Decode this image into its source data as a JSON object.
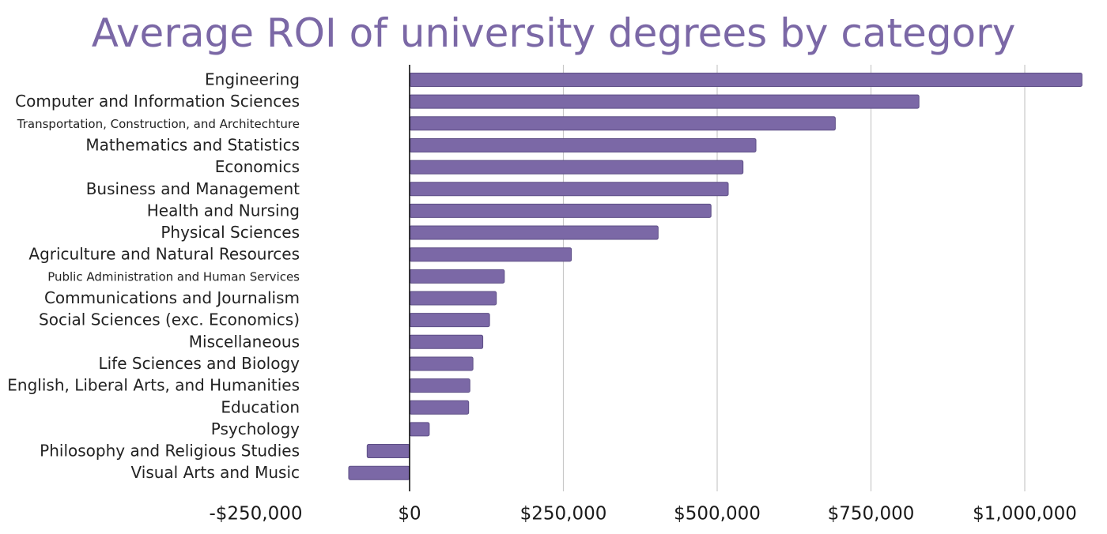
{
  "chart_data": {
    "type": "bar",
    "orientation": "horizontal",
    "title": "Average ROI of university degrees by category",
    "xlabel": "",
    "ylabel": "",
    "categories": [
      "Engineering",
      "Computer and Information Sciences",
      "Transportation, Construction, and Architechture",
      "Mathematics and Statistics",
      "Economics",
      "Business and Management",
      "Health and Nursing",
      "Physical Sciences",
      "Agriculture and Natural Resources",
      "Public Administration and Human Services",
      "Communications and Journalism",
      "Social Sciences (exc. Economics)",
      "Miscellaneous",
      "Life Sciences and Biology",
      "English, Liberal Arts, and Humanities",
      "Education",
      "Psychology",
      "Philosophy and Religious Studies",
      "Visual Arts and Music"
    ],
    "values": [
      1093000,
      828000,
      692000,
      563000,
      542000,
      518000,
      490000,
      404000,
      263000,
      154000,
      141000,
      130000,
      119000,
      103000,
      98000,
      96000,
      32000,
      -69000,
      -99000
    ],
    "xlim": [
      -250000,
      1100000
    ],
    "xticks": [
      -250000,
      0,
      250000,
      500000,
      750000,
      1000000
    ],
    "xtick_labels": [
      "-$250,000",
      "$0",
      "$250,000",
      "$500,000",
      "$750,000",
      "$1,000,000"
    ],
    "grid": "vertical",
    "legend": "none",
    "colors": {
      "bar": "#7b68a6",
      "bar_edge": "#5e4f86",
      "title": "#7b68a6",
      "grid": "#c8c8c8",
      "zero_line": "#000000"
    }
  }
}
